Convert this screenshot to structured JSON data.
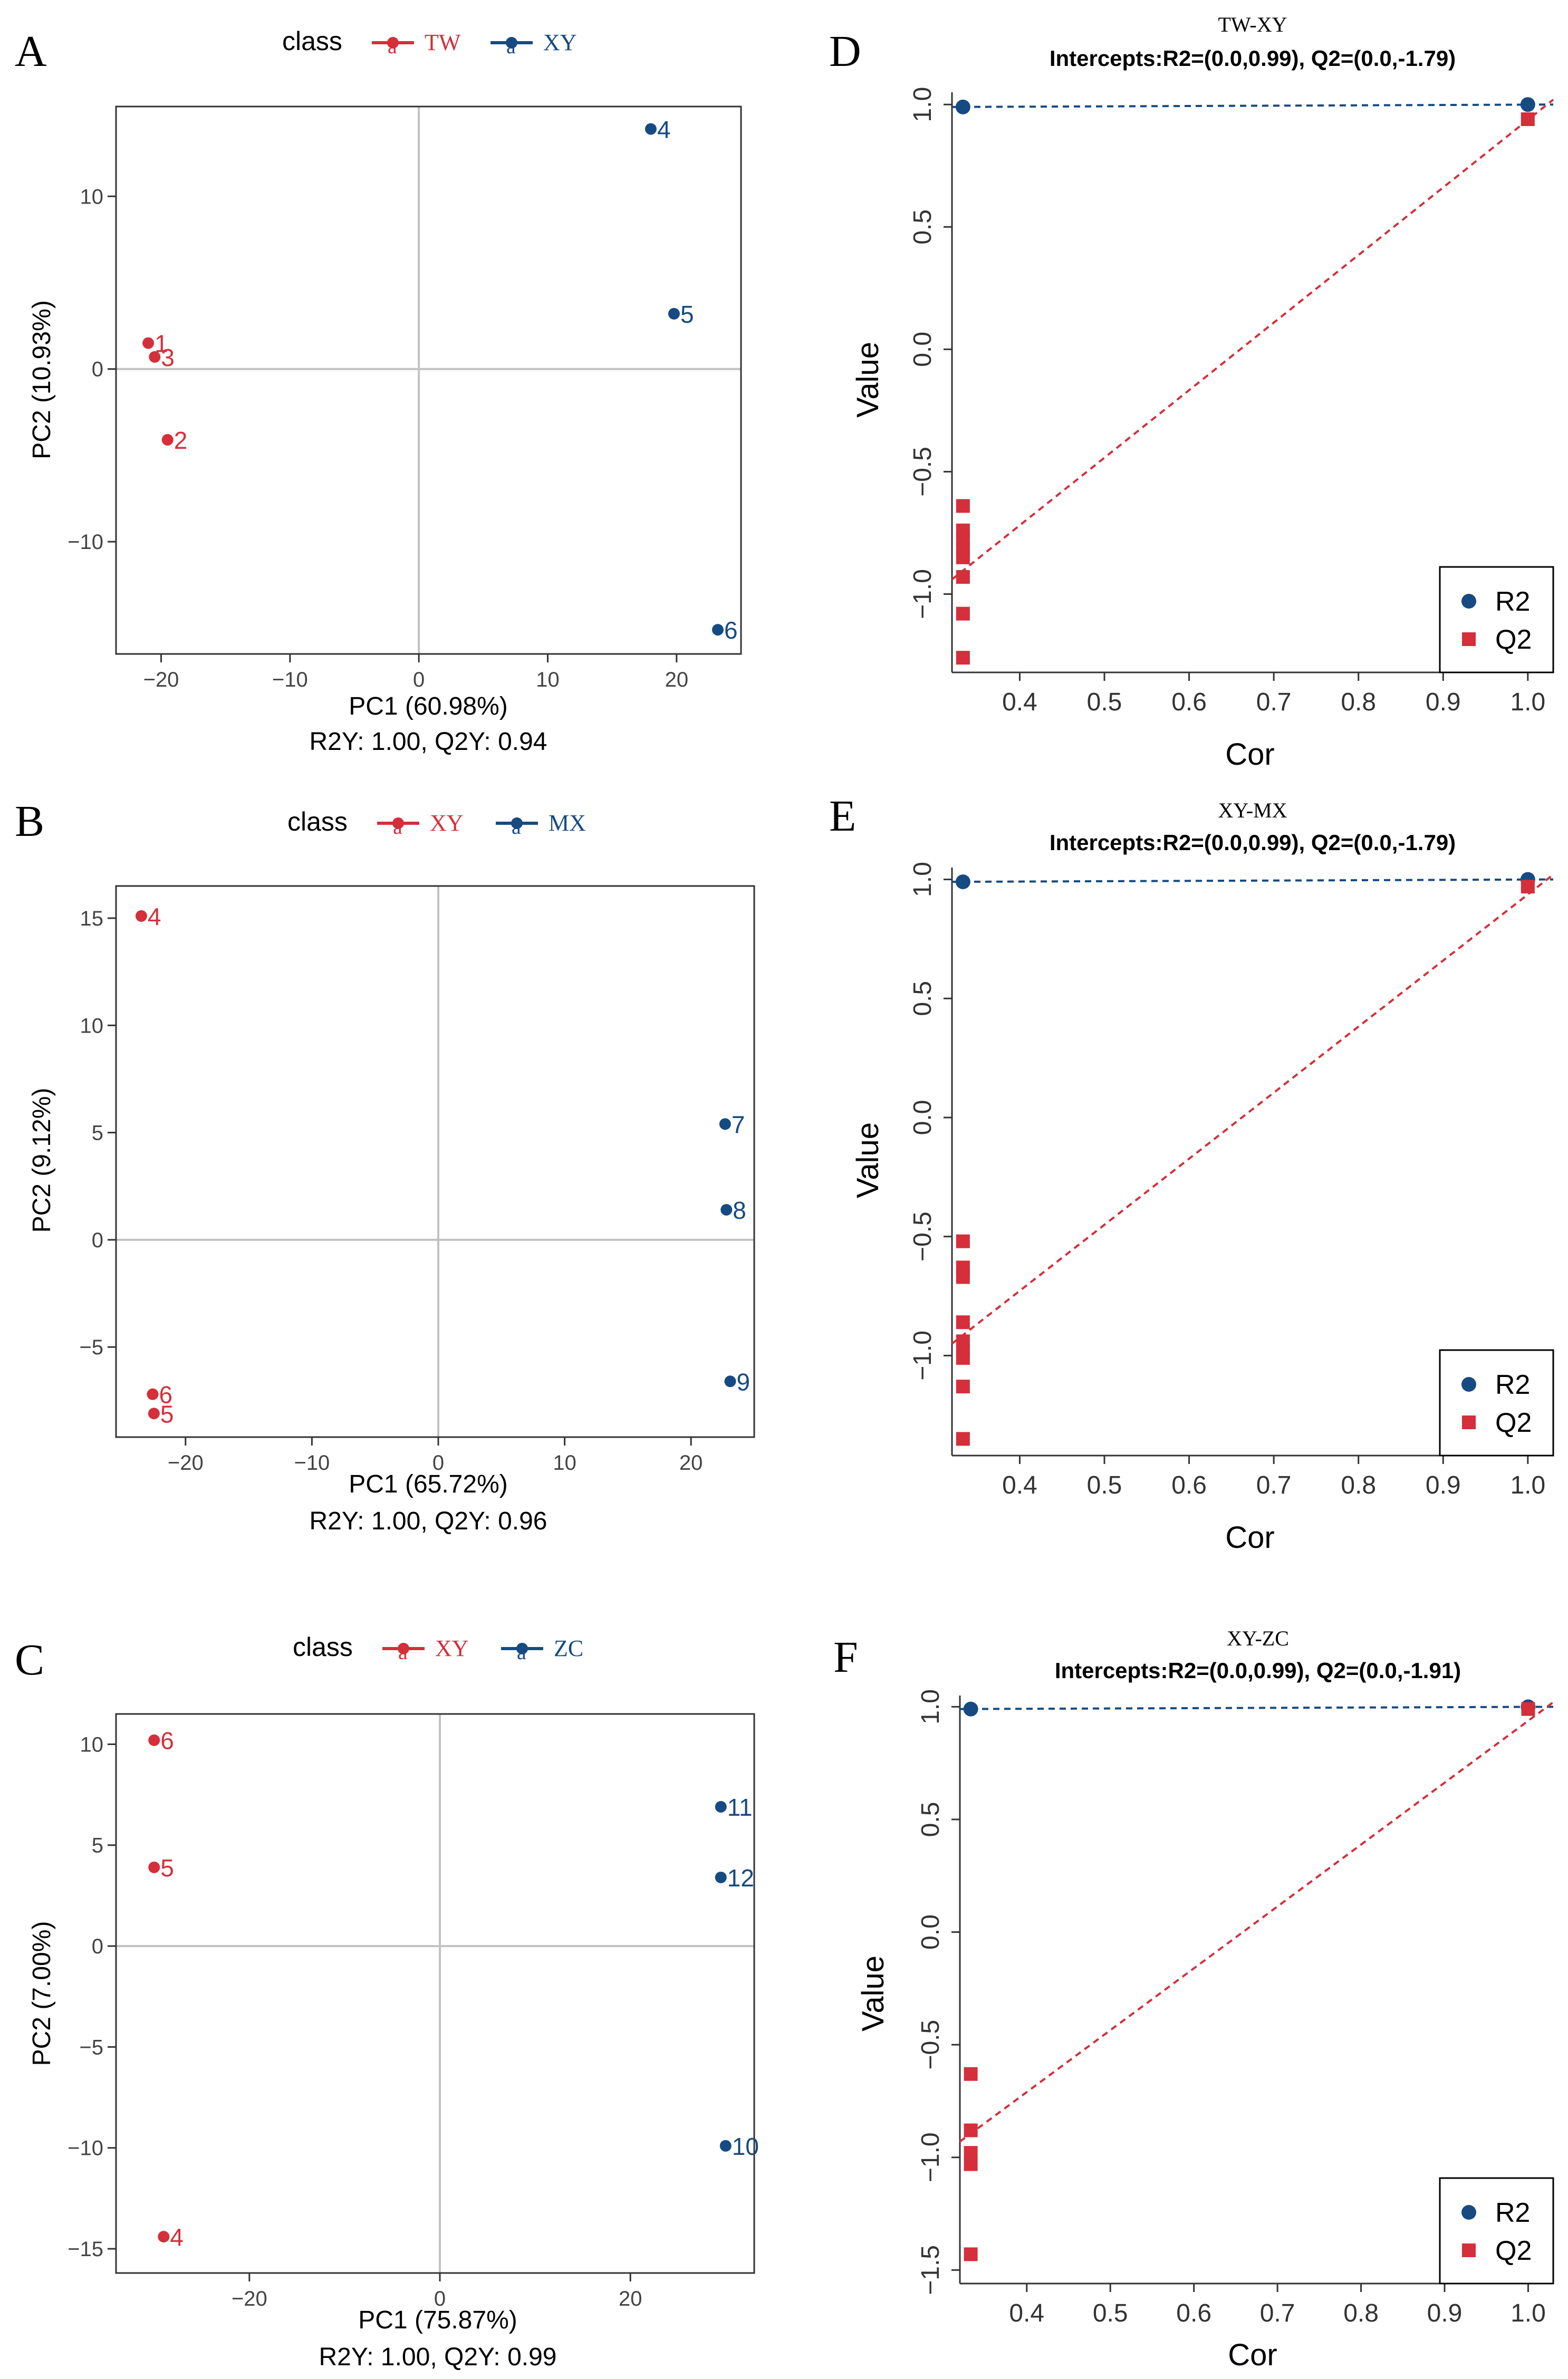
{
  "figure": {
    "panel_letters": [
      "A",
      "B",
      "C",
      "D",
      "E",
      "F"
    ]
  },
  "colors": {
    "red": "#d42f3a",
    "blue": "#164a82",
    "grid": "#c2c2c2",
    "axis": "#333333"
  },
  "chart_data": [
    {
      "panel": "A",
      "type": "scatter",
      "legend": {
        "title": "class",
        "entries": [
          {
            "name": "TW",
            "glyph": "a",
            "color": "#d42f3a"
          },
          {
            "name": "XY",
            "glyph": "a",
            "color": "#164a82"
          }
        ]
      },
      "xlabel": "PC1 (60.98%)",
      "ylabel": "PC2 (10.93%)",
      "footer": "R2Y: 1.00, Q2Y: 0.94",
      "xlim": [
        -23.5,
        25
      ],
      "ylim": [
        -16.5,
        15.2
      ],
      "xticks": [
        -20,
        -10,
        0,
        10,
        20
      ],
      "yticks": [
        -10,
        0,
        10
      ],
      "series": [
        {
          "name": "TW",
          "color": "#d42f3a",
          "points": [
            {
              "x": -21,
              "y": 1.5,
              "label": "1"
            },
            {
              "x": -20.5,
              "y": 0.7,
              "label": "3"
            },
            {
              "x": -19.5,
              "y": -4.1,
              "label": "2"
            }
          ]
        },
        {
          "name": "XY",
          "color": "#164a82",
          "points": [
            {
              "x": 18,
              "y": 13.9,
              "label": "4"
            },
            {
              "x": 19.8,
              "y": 3.2,
              "label": "5"
            },
            {
              "x": 23.2,
              "y": -15.1,
              "label": "6"
            }
          ]
        }
      ]
    },
    {
      "panel": "B",
      "type": "scatter",
      "legend": {
        "title": "class",
        "entries": [
          {
            "name": "XY",
            "glyph": "a",
            "color": "#d42f3a"
          },
          {
            "name": "MX",
            "glyph": "a",
            "color": "#164a82"
          }
        ]
      },
      "xlabel": "PC1 (65.72%)",
      "ylabel": "PC2 (9.12%)",
      "footer": "R2Y: 1.00, Q2Y: 0.96",
      "xlim": [
        -25.5,
        25
      ],
      "ylim": [
        -9.2,
        16.5
      ],
      "xticks": [
        -20,
        -10,
        0,
        10,
        20
      ],
      "yticks": [
        -5,
        0,
        5,
        10,
        15
      ],
      "series": [
        {
          "name": "XY",
          "color": "#d42f3a",
          "points": [
            {
              "x": -23.5,
              "y": 15.1,
              "label": "4"
            },
            {
              "x": -22.6,
              "y": -7.2,
              "label": "6"
            },
            {
              "x": -22.5,
              "y": -8.1,
              "label": "5"
            }
          ]
        },
        {
          "name": "MX",
          "color": "#164a82",
          "points": [
            {
              "x": 22.7,
              "y": 5.4,
              "label": "7"
            },
            {
              "x": 22.8,
              "y": 1.4,
              "label": "8"
            },
            {
              "x": 23.1,
              "y": -6.6,
              "label": "9"
            }
          ]
        }
      ]
    },
    {
      "panel": "C",
      "type": "scatter",
      "legend": {
        "title": "class",
        "entries": [
          {
            "name": "XY",
            "glyph": "a",
            "color": "#d42f3a"
          },
          {
            "name": "ZC",
            "glyph": "a",
            "color": "#164a82"
          }
        ]
      },
      "xlabel": "PC1 (75.87%)",
      "ylabel": "PC2 (7.00%)",
      "footer": "R2Y: 1.00, Q2Y: 0.99",
      "xlim": [
        -34,
        33
      ],
      "ylim": [
        -16.2,
        11.5
      ],
      "xticks": [
        -20,
        0,
        20
      ],
      "yticks": [
        -15,
        -10,
        -5,
        0,
        5,
        10
      ],
      "series": [
        {
          "name": "XY",
          "color": "#d42f3a",
          "points": [
            {
              "x": -30,
              "y": 10.2,
              "label": "6"
            },
            {
              "x": -30,
              "y": 3.9,
              "label": "5"
            },
            {
              "x": -29,
              "y": -14.4,
              "label": "4"
            }
          ]
        },
        {
          "name": "ZC",
          "color": "#164a82",
          "points": [
            {
              "x": 29.5,
              "y": 6.9,
              "label": "11"
            },
            {
              "x": 29.5,
              "y": 3.4,
              "label": "12"
            },
            {
              "x": 30,
              "y": -9.9,
              "label": "10"
            }
          ]
        }
      ]
    },
    {
      "panel": "D",
      "type": "scatter",
      "subtitle": "TW-XY",
      "title": "Intercepts:R2=(0.0,0.99), Q2=(0.0,-1.79)",
      "xlabel": "Cor",
      "ylabel": "Value",
      "xlim": [
        0.32,
        1.03
      ],
      "ylim": [
        -1.32,
        1.05
      ],
      "xticks": [
        0.4,
        0.5,
        0.6,
        0.7,
        0.8,
        0.9,
        1.0
      ],
      "yticks": [
        -1.0,
        -0.5,
        0.0,
        0.5,
        1.0
      ],
      "legend": {
        "position": "bottom-right",
        "entries": [
          {
            "name": "R2",
            "color": "#164a82",
            "shape": "circle"
          },
          {
            "name": "Q2",
            "color": "#d42f3a",
            "shape": "square"
          }
        ]
      },
      "series": [
        {
          "name": "R2",
          "color": "#164a82",
          "shape": "circle",
          "x": [
            0.333,
            1.0
          ],
          "y": [
            0.99,
            1.0
          ]
        },
        {
          "name": "Q2",
          "color": "#d42f3a",
          "shape": "square",
          "x": [
            0.333,
            0.333,
            0.333,
            0.333,
            0.333,
            0.333,
            0.333,
            0.333,
            1.0
          ],
          "y": [
            -0.64,
            -0.74,
            -0.78,
            -0.82,
            -0.85,
            -0.93,
            -1.08,
            -1.26,
            0.94
          ]
        }
      ],
      "fit_lines": [
        {
          "name": "R2",
          "color": "#164a82",
          "from": [
            0.32,
            0.99
          ],
          "to": [
            1.03,
            1.0
          ]
        },
        {
          "name": "Q2",
          "color": "#d42f3a",
          "from": [
            0.32,
            -0.94
          ],
          "to": [
            1.03,
            1.02
          ]
        }
      ]
    },
    {
      "panel": "E",
      "type": "scatter",
      "subtitle": "XY-MX",
      "title": "Intercepts:R2=(0.0,0.99), Q2=(0.0,-1.79)",
      "xlabel": "Cor",
      "ylabel": "Value",
      "xlim": [
        0.32,
        1.03
      ],
      "ylim": [
        -1.42,
        1.05
      ],
      "xticks": [
        0.4,
        0.5,
        0.6,
        0.7,
        0.8,
        0.9,
        1.0
      ],
      "yticks": [
        -1.0,
        -0.5,
        0.0,
        0.5,
        1.0
      ],
      "legend": {
        "position": "bottom-right",
        "entries": [
          {
            "name": "R2",
            "color": "#164a82",
            "shape": "circle"
          },
          {
            "name": "Q2",
            "color": "#d42f3a",
            "shape": "square"
          }
        ]
      },
      "series": [
        {
          "name": "R2",
          "color": "#164a82",
          "shape": "circle",
          "x": [
            0.333,
            1.0
          ],
          "y": [
            0.99,
            1.0
          ]
        },
        {
          "name": "Q2",
          "color": "#d42f3a",
          "shape": "square",
          "x": [
            0.333,
            0.333,
            0.333,
            0.333,
            0.333,
            0.333,
            0.333,
            0.333,
            0.333,
            1.0
          ],
          "y": [
            -0.52,
            -0.63,
            -0.67,
            -0.86,
            -0.94,
            -0.98,
            -1.01,
            -1.13,
            -1.35,
            0.97
          ]
        }
      ],
      "fit_lines": [
        {
          "name": "R2",
          "color": "#164a82",
          "from": [
            0.32,
            0.99
          ],
          "to": [
            1.03,
            1.0
          ]
        },
        {
          "name": "Q2",
          "color": "#d42f3a",
          "from": [
            0.32,
            -0.95
          ],
          "to": [
            1.03,
            1.02
          ]
        }
      ]
    },
    {
      "panel": "F",
      "type": "scatter",
      "subtitle": "XY-ZC",
      "title": "Intercepts:R2=(0.0,0.99), Q2=(0.0,-1.91)",
      "xlabel": "Cor",
      "ylabel": "Value",
      "xlim": [
        0.32,
        1.03
      ],
      "ylim": [
        -1.56,
        1.05
      ],
      "xticks": [
        0.4,
        0.5,
        0.6,
        0.7,
        0.8,
        0.9,
        1.0
      ],
      "yticks": [
        -1.5,
        -1.0,
        -0.5,
        0.0,
        0.5,
        1.0
      ],
      "legend": {
        "position": "bottom-right",
        "entries": [
          {
            "name": "R2",
            "color": "#164a82",
            "shape": "circle"
          },
          {
            "name": "Q2",
            "color": "#d42f3a",
            "shape": "square"
          }
        ]
      },
      "series": [
        {
          "name": "R2",
          "color": "#164a82",
          "shape": "circle",
          "x": [
            0.333,
            1.0
          ],
          "y": [
            0.99,
            1.0
          ]
        },
        {
          "name": "Q2",
          "color": "#d42f3a",
          "shape": "square",
          "x": [
            0.333,
            0.333,
            0.333,
            0.333,
            0.333,
            1.0
          ],
          "y": [
            -0.63,
            -0.88,
            -0.98,
            -1.03,
            -1.43,
            0.99
          ]
        }
      ],
      "fit_lines": [
        {
          "name": "R2",
          "color": "#164a82",
          "from": [
            0.32,
            0.99
          ],
          "to": [
            1.03,
            1.0
          ]
        },
        {
          "name": "Q2",
          "color": "#d42f3a",
          "from": [
            0.32,
            -0.93
          ],
          "to": [
            1.03,
            1.02
          ]
        }
      ]
    }
  ]
}
